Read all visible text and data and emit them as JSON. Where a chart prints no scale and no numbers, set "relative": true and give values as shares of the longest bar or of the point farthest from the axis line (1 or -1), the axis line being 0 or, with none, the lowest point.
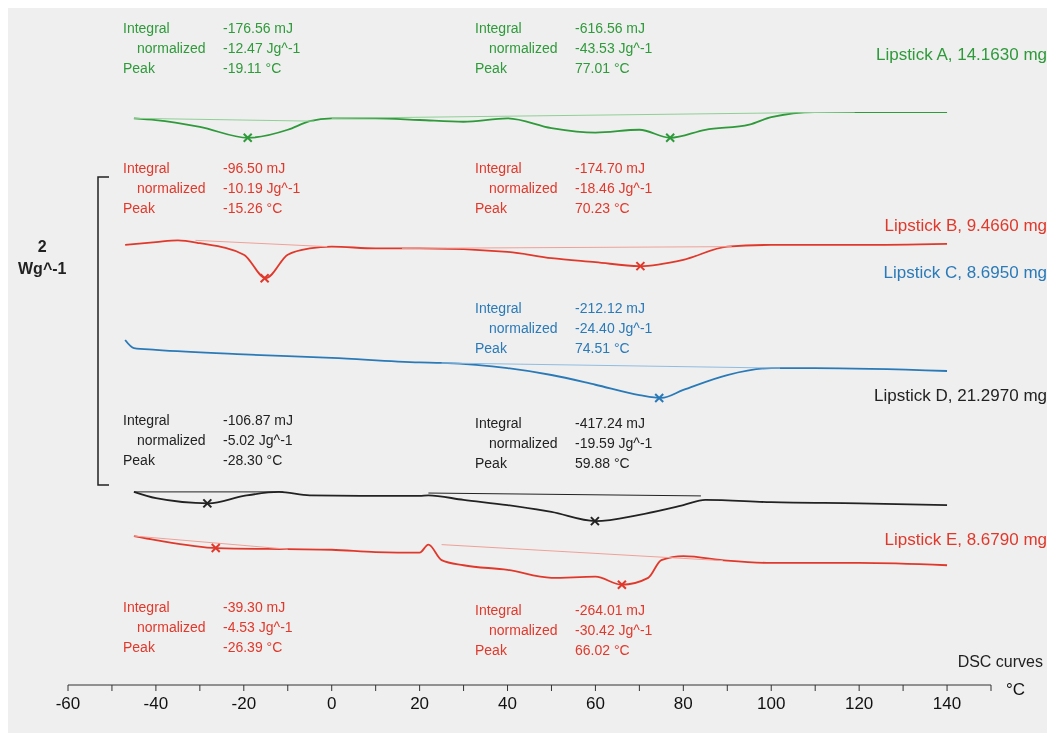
{
  "chart_data": {
    "type": "line",
    "relative": true,
    "xlabel": "°C",
    "ylabel": "2\nWg^-1",
    "xlim": [
      -60,
      150
    ],
    "xticks": [
      -60,
      {
        "value": -50,
        "label": null
      },
      -40,
      {
        "value": -30,
        "label": null
      },
      -20,
      {
        "value": -10,
        "label": null
      },
      0,
      {
        "value": 10,
        "label": null
      },
      20,
      {
        "value": 30,
        "label": null
      },
      40,
      {
        "value": 50,
        "label": null
      },
      60,
      {
        "value": 70,
        "label": null
      },
      80,
      {
        "value": 90,
        "label": null
      },
      100,
      {
        "value": 110,
        "label": null
      },
      120,
      {
        "value": 130,
        "label": null
      },
      140,
      {
        "value": 150,
        "label": null
      }
    ],
    "grid": false,
    "legend": false,
    "marker": "none",
    "line_style": "solid",
    "series": [
      {
        "name": "Lipstick A, 14.1630 mg",
        "color": "#2e9a3a",
        "x": [
          -45,
          -40,
          -30,
          -19,
          -10,
          -5,
          0,
          10,
          20,
          30,
          40,
          50,
          60,
          70,
          77,
          85,
          95,
          100,
          110,
          120,
          140
        ],
        "values": [
          0.989,
          0.986,
          0.974,
          0.955,
          0.969,
          0.984,
          0.989,
          0.989,
          0.986,
          0.983,
          0.989,
          0.972,
          0.964,
          0.969,
          0.955,
          0.969,
          0.978,
          0.991,
          1,
          1,
          1
        ]
      },
      {
        "name": "Lipstick B, 9.4660 mg",
        "color": "#e0392b",
        "x": [
          -47,
          -40,
          -35,
          -30,
          -20,
          -15,
          -10,
          -5,
          0,
          10,
          20,
          40,
          50,
          60,
          70,
          80,
          90,
          100,
          120,
          140
        ],
        "values": [
          0.768,
          0.773,
          0.776,
          0.771,
          0.751,
          0.71,
          0.751,
          0.762,
          0.765,
          0.762,
          0.762,
          0.756,
          0.745,
          0.738,
          0.731,
          0.742,
          0.765,
          0.768,
          0.768,
          0.77
        ]
      },
      {
        "name": "Lipstick C, 8.6950 mg",
        "color": "#2a7ab8",
        "x": [
          -47,
          -45,
          -40,
          -20,
          0,
          20,
          25,
          40,
          50,
          60,
          70,
          75,
          80,
          90,
          100,
          110,
          140
        ],
        "values": [
          0.602,
          0.588,
          0.585,
          0.577,
          0.571,
          0.563,
          0.562,
          0.553,
          0.541,
          0.524,
          0.506,
          0.501,
          0.515,
          0.541,
          0.553,
          0.553,
          0.548
        ]
      },
      {
        "name": "Lipstick D, 21.2970 mg",
        "color": "#222222",
        "x": [
          -45,
          -40,
          -28,
          -20,
          -12,
          -5,
          10,
          20,
          22,
          30,
          40,
          50,
          60,
          70,
          80,
          85,
          100,
          120,
          140
        ],
        "values": [
          0.337,
          0.326,
          0.317,
          0.33,
          0.337,
          0.331,
          0.33,
          0.33,
          0.331,
          0.323,
          0.314,
          0.302,
          0.286,
          0.297,
          0.314,
          0.323,
          0.319,
          0.317,
          0.314
        ]
      },
      {
        "name": "Lipstick E, 8.6790 mg",
        "color": "#e0392b",
        "x": [
          -45,
          -40,
          -26,
          -10,
          0,
          10,
          20,
          22,
          25,
          30,
          40,
          50,
          60,
          66,
          72,
          75,
          80,
          90,
          100,
          120,
          140
        ],
        "values": [
          0.26,
          0.253,
          0.239,
          0.237,
          0.236,
          0.232,
          0.231,
          0.245,
          0.218,
          0.209,
          0.201,
          0.187,
          0.189,
          0.175,
          0.187,
          0.218,
          0.225,
          0.217,
          0.213,
          0.213,
          0.209
        ]
      },
      {
        "color": "#8fcf95",
        "x": [
          -45,
          -4
        ],
        "values": [
          0.989,
          0.984
        ]
      },
      {
        "color": "#8fcf95",
        "x": [
          0,
          119
        ],
        "values": [
          0.989,
          1
        ]
      },
      {
        "color": "#f0a098",
        "x": [
          -31,
          -1
        ],
        "values": [
          0.776,
          0.765
        ]
      },
      {
        "color": "#f0a098",
        "x": [
          16,
          91
        ],
        "values": [
          0.762,
          0.765
        ]
      },
      {
        "color": "#90bce0",
        "x": [
          25,
          102
        ],
        "values": [
          0.562,
          0.553
        ]
      },
      {
        "color": "#222222",
        "x": [
          -45,
          -11
        ],
        "values": [
          0.337,
          0.337
        ]
      },
      {
        "color": "#222222",
        "x": [
          22,
          84
        ],
        "values": [
          0.335,
          0.33
        ]
      },
      {
        "color": "#f0a098",
        "x": [
          -45,
          -10
        ],
        "values": [
          0.26,
          0.237
        ]
      },
      {
        "color": "#f0a098",
        "x": [
          25,
          89
        ],
        "values": [
          0.245,
          0.217
        ]
      },
      {
        "type": "scatter",
        "marker": "cross",
        "color": "#2e9a3a",
        "x": [
          -19.11,
          77.01
        ],
        "values": [
          0.955,
          0.955
        ]
      },
      {
        "type": "scatter",
        "marker": "cross",
        "color": "#e0392b",
        "x": [
          -15.26,
          70.23
        ],
        "values": [
          0.71,
          0.731
        ]
      },
      {
        "type": "scatter",
        "marker": "cross",
        "color": "#2a7ab8",
        "x": [
          74.51
        ],
        "values": [
          0.501
        ]
      },
      {
        "type": "scatter",
        "marker": "cross",
        "color": "#222222",
        "x": [
          -28.3,
          59.88
        ],
        "values": [
          0.317,
          0.286
        ]
      },
      {
        "type": "scatter",
        "marker": "cross",
        "color": "#e0392b",
        "x": [
          -26.39,
          66.02
        ],
        "values": [
          0.239,
          0.175
        ]
      }
    ],
    "annotations": [
      "Integral -176.56 mJ\nnormalized -12.47 Jg^-1\nPeak -19.11 °C",
      "Integral -616.56 mJ\nnormalized -43.53 Jg^-1\nPeak 77.01 °C",
      "Integral -96.50 mJ\nnormalized -10.19 Jg^-1\nPeak -15.26 °C",
      "Integral -174.70 mJ\nnormalized -18.46 Jg^-1\nPeak 70.23 °C",
      "Integral -212.12 mJ\nnormalized -24.40 Jg^-1\nPeak 74.51 °C",
      "Integral -106.87 mJ\nnormalized -5.02 Jg^-1\nPeak -28.30 °C",
      "Integral -417.24 mJ\nnormalized -19.59 Jg^-1\nPeak 59.88 °C",
      "Integral -39.30 mJ\nnormalized -4.53 Jg^-1\nPeak -26.39 °C",
      "Integral -264.01 mJ\nnormalized -30.42 Jg^-1\nPeak 66.02 °C",
      "DSC curves"
    ]
  }
}
